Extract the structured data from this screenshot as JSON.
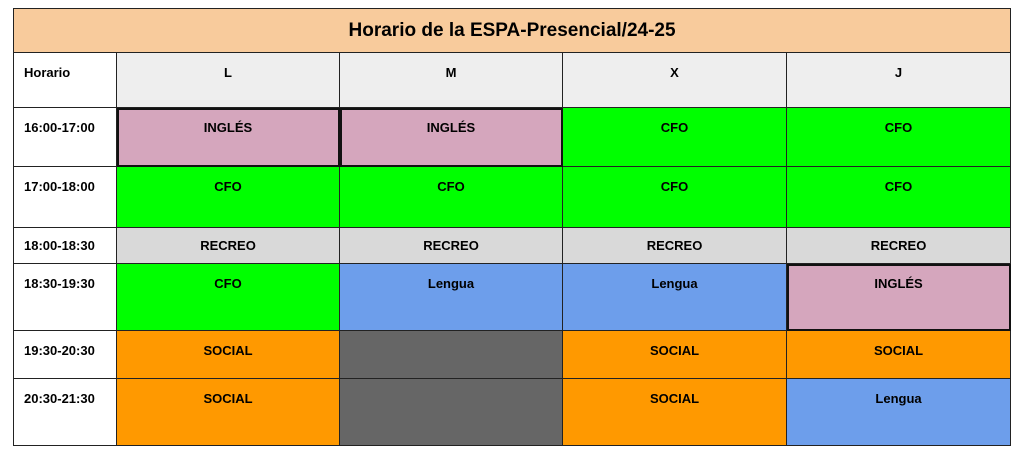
{
  "title": "Horario de la ESPA-Presencial/24-25",
  "header": {
    "time_label": "Horario",
    "days": [
      "L",
      "M",
      "X",
      "J"
    ]
  },
  "colors": {
    "INGLÉS": "#d5a6bd",
    "CFO": "#00ff00",
    "RECREO": "#d9d9d9",
    "Lengua": "#6d9eeb",
    "SOCIAL": "#ff9900",
    "empty": "#666666"
  },
  "rows": [
    {
      "time": "16:00-17:00",
      "cells": [
        "INGLÉS",
        "INGLÉS",
        "CFO",
        "CFO"
      ]
    },
    {
      "time": "17:00-18:00",
      "cells": [
        "CFO",
        "CFO",
        "CFO",
        "CFO"
      ]
    },
    {
      "time": "18:00-18:30",
      "cells": [
        "RECREO",
        "RECREO",
        "RECREO",
        "RECREO"
      ]
    },
    {
      "time": "18:30-19:30",
      "cells": [
        "CFO",
        "Lengua",
        "Lengua",
        "INGLÉS"
      ]
    },
    {
      "time": "19:30-20:30",
      "cells": [
        "SOCIAL",
        "",
        "SOCIAL",
        "SOCIAL"
      ]
    },
    {
      "time": "20:30-21:30",
      "cells": [
        "SOCIAL",
        "",
        "SOCIAL",
        "Lengua"
      ]
    }
  ]
}
